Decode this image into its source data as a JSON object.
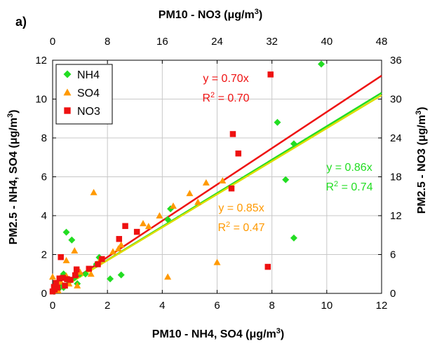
{
  "panel_label": "a)",
  "chart_data": {
    "type": "scatter",
    "title": "",
    "xlabel_bottom": [
      "PM10 - NH4, SO4 (",
      "μ",
      "g/m",
      "3",
      ")"
    ],
    "xlabel_top": [
      "PM10 - NO3 (",
      "μ",
      "g/m",
      "3",
      ")"
    ],
    "ylabel_left": [
      "PM2.5 - NH4, SO4 (",
      "μ",
      "g/m",
      "3",
      ")"
    ],
    "ylabel_right": [
      "PM2.5 - NO3 (",
      "μ",
      "g/m",
      "3",
      ")"
    ],
    "x_bottom": {
      "min": 0,
      "max": 12,
      "ticks": [
        0,
        2,
        4,
        6,
        8,
        10,
        12
      ]
    },
    "y_left": {
      "min": 0,
      "max": 12,
      "ticks": [
        0,
        2,
        4,
        6,
        8,
        10,
        12
      ]
    },
    "x_top": {
      "min": 0,
      "max": 48,
      "ticks": [
        0,
        8,
        16,
        24,
        32,
        40,
        48
      ]
    },
    "y_right": {
      "min": 0,
      "max": 36,
      "ticks": [
        0,
        6,
        12,
        18,
        24,
        30,
        36
      ]
    },
    "grid": true,
    "legend_position": "top-left",
    "series": [
      {
        "name": "NH4",
        "marker": "diamond",
        "color": "#22dd22",
        "axes": "bottom-left",
        "points": [
          [
            9.8,
            11.8
          ],
          [
            8.2,
            8.8
          ],
          [
            8.8,
            7.7
          ],
          [
            8.5,
            5.85
          ],
          [
            8.8,
            2.85
          ],
          [
            0.5,
            3.15
          ],
          [
            0.7,
            2.75
          ],
          [
            0.4,
            1.0
          ],
          [
            0.6,
            0.6
          ],
          [
            1.0,
            1.0
          ],
          [
            1.6,
            1.5
          ],
          [
            1.7,
            1.85
          ],
          [
            2.1,
            0.75
          ],
          [
            2.5,
            0.95
          ],
          [
            4.2,
            3.8
          ],
          [
            4.3,
            4.35
          ],
          [
            0.2,
            0.2
          ],
          [
            0.3,
            0.5
          ],
          [
            0.8,
            0.8
          ],
          [
            1.2,
            1.0
          ],
          [
            0.1,
            0.3
          ],
          [
            0.05,
            0.1
          ],
          [
            0.4,
            0.3
          ],
          [
            0.9,
            0.5
          ]
        ]
      },
      {
        "name": "SO4",
        "marker": "triangle",
        "color": "#ff9900",
        "axes": "bottom-left",
        "points": [
          [
            1.5,
            5.2
          ],
          [
            5.0,
            5.15
          ],
          [
            5.6,
            5.7
          ],
          [
            6.2,
            5.8
          ],
          [
            6.0,
            1.6
          ],
          [
            4.2,
            0.85
          ],
          [
            4.4,
            4.5
          ],
          [
            3.9,
            4.0
          ],
          [
            3.5,
            3.45
          ],
          [
            3.3,
            3.6
          ],
          [
            2.4,
            2.3
          ],
          [
            2.2,
            2.15
          ],
          [
            1.7,
            1.65
          ],
          [
            1.0,
            1.1
          ],
          [
            0.8,
            2.2
          ],
          [
            0.5,
            1.7
          ],
          [
            0.0,
            0.85
          ],
          [
            0.1,
            0.4
          ],
          [
            0.2,
            0.15
          ],
          [
            0.9,
            0.4
          ],
          [
            0.5,
            0.9
          ],
          [
            1.4,
            1.0
          ],
          [
            0.3,
            0.6
          ],
          [
            0.6,
            0.5
          ],
          [
            5.3,
            4.7
          ],
          [
            2.5,
            2.5
          ]
        ]
      },
      {
        "name": "NO3",
        "marker": "square",
        "color": "#ee1111",
        "axes": "top-right",
        "points": [
          [
            31.8,
            33.8
          ],
          [
            26.3,
            24.6
          ],
          [
            27.1,
            21.6
          ],
          [
            26.1,
            16.2
          ],
          [
            31.4,
            4.1
          ],
          [
            10.6,
            10.4
          ],
          [
            12.3,
            9.5
          ],
          [
            9.7,
            8.4
          ],
          [
            7.2,
            5.3
          ],
          [
            6.6,
            4.5
          ],
          [
            5.3,
            3.8
          ],
          [
            3.5,
            3.7
          ],
          [
            3.3,
            2.8
          ],
          [
            2.1,
            2.2
          ],
          [
            1.2,
            5.6
          ],
          [
            1.0,
            2.3
          ],
          [
            1.5,
            2.4
          ],
          [
            0.7,
            0.9
          ],
          [
            0.2,
            1.0
          ],
          [
            0.0,
            0.3
          ],
          [
            0.5,
            1.6
          ],
          [
            1.8,
            1.2
          ],
          [
            0.3,
            0.6
          ],
          [
            2.6,
            2.1
          ]
        ]
      }
    ],
    "fit_lines": [
      {
        "name": "NO3 fit",
        "color": "#ee1111",
        "slope": 0.7,
        "label": "y = 0.70x",
        "r2_prefix": "R",
        "r2_sup": "2",
        "r2_suffix": " = 0.70"
      },
      {
        "name": "NH4 fit",
        "color": "#22dd22",
        "slope": 0.86,
        "label": "y = 0.86x",
        "r2_prefix": "R",
        "r2_sup": "2",
        "r2_suffix": " = 0.74"
      },
      {
        "name": "SO4 fit",
        "color": "#dddd00",
        "slope": 0.85,
        "label": "y = 0.85x",
        "r2_prefix": "R",
        "r2_sup": "2",
        "r2_suffix": " = 0.47"
      }
    ]
  }
}
